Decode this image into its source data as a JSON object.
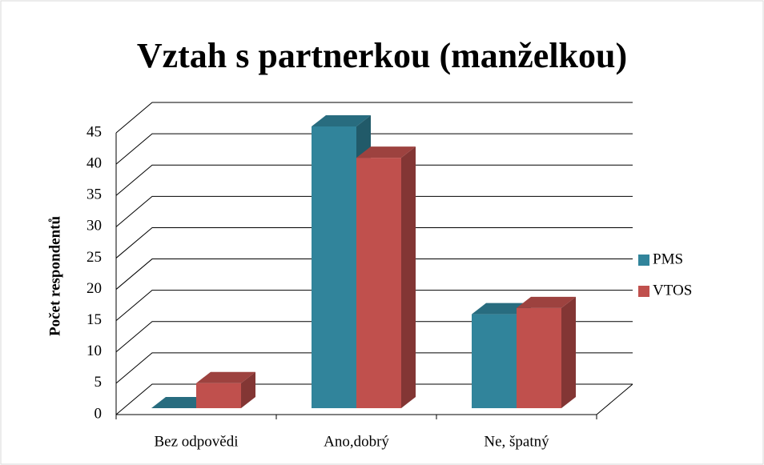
{
  "chart_data": {
    "type": "bar3d",
    "title": "Vztah s partnerkou (manželkou)",
    "ylabel": "Počet respondentů",
    "categories": [
      "Bez odpovědi",
      "Ano,dobrý",
      "Ne, špatný"
    ],
    "series": [
      {
        "name": "PMS",
        "color": "#31849b",
        "values": [
          0,
          45,
          15
        ]
      },
      {
        "name": "VTOS",
        "color": "#c0504d",
        "values": [
          4,
          40,
          16
        ]
      }
    ],
    "ylim": [
      0,
      45
    ],
    "yticks": [
      0,
      5,
      10,
      15,
      20,
      25,
      30,
      35,
      40,
      45
    ],
    "grid": true,
    "legend": "right"
  }
}
